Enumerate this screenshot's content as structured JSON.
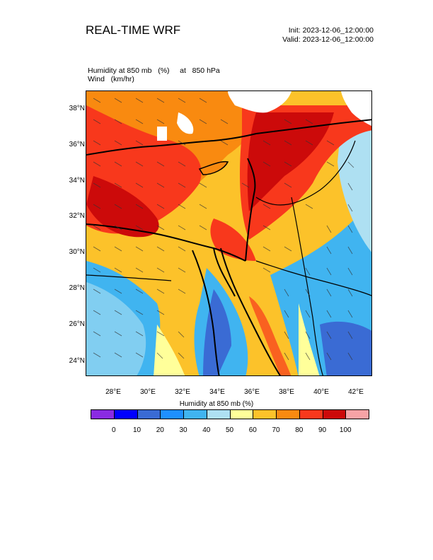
{
  "header": {
    "title": "REAL-TIME WRF",
    "init": "Init: 2023-12-06_12:00:00",
    "valid": "Valid: 2023-12-06_12:00:00"
  },
  "field": {
    "line1": "Humidity at 850 mb   (%)     at   850 hPa",
    "line2": "Wind   (km/hr)"
  },
  "map": {
    "lat_ticks": [
      "38°N",
      "36°N",
      "34°N",
      "32°N",
      "30°N",
      "28°N",
      "26°N",
      "24°N"
    ],
    "lon_ticks": [
      "28°E",
      "30°E",
      "32°E",
      "34°E",
      "36°E",
      "38°E",
      "40°E",
      "42°E"
    ],
    "lat_range": [
      23.2,
      38.9
    ],
    "lon_range": [
      26.5,
      42.9
    ]
  },
  "colorbar": {
    "title": "Humidity at 850 mb  (%)",
    "colors": [
      "#8a2be2",
      "#0000ff",
      "#3a6bd4",
      "#1e90ff",
      "#40b4f0",
      "#aee0f2",
      "#ffff9a",
      "#fcc22a",
      "#f98a10",
      "#f8381c",
      "#cc0a0a",
      "#f6a3a6"
    ],
    "labels": [
      "0",
      "10",
      "20",
      "30",
      "40",
      "50",
      "60",
      "70",
      "80",
      "90",
      "100"
    ]
  }
}
